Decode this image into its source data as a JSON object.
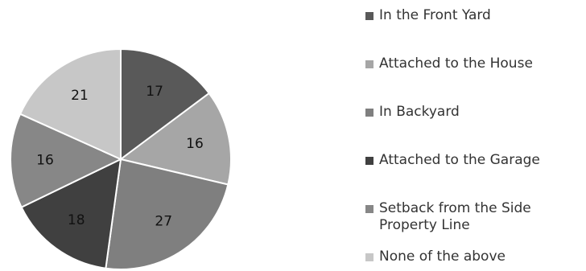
{
  "chart_data": {
    "type": "pie",
    "categories": [
      "In the Front Yard",
      "Attached to the House",
      "In Backyard",
      "Attached to the Garage",
      "Setback from the Side Property Line",
      "None of the above"
    ],
    "values": [
      17,
      16,
      27,
      18,
      16,
      21
    ],
    "colors": [
      "#595959",
      "#a6a6a6",
      "#7f7f7f",
      "#404040",
      "#878787",
      "#c7c7c7"
    ],
    "legend_position": "right"
  },
  "legend": {
    "items": [
      {
        "label": "In the Front Yard",
        "color": "#595959"
      },
      {
        "label": "Attached to the House",
        "color": "#a6a6a6"
      },
      {
        "label": "In Backyard",
        "color": "#7f7f7f"
      },
      {
        "label": "Attached to the Garage",
        "color": "#404040"
      },
      {
        "label": "Setback from the Side Property Line",
        "color": "#878787"
      },
      {
        "label": "None of the above",
        "color": "#c7c7c7"
      }
    ]
  }
}
